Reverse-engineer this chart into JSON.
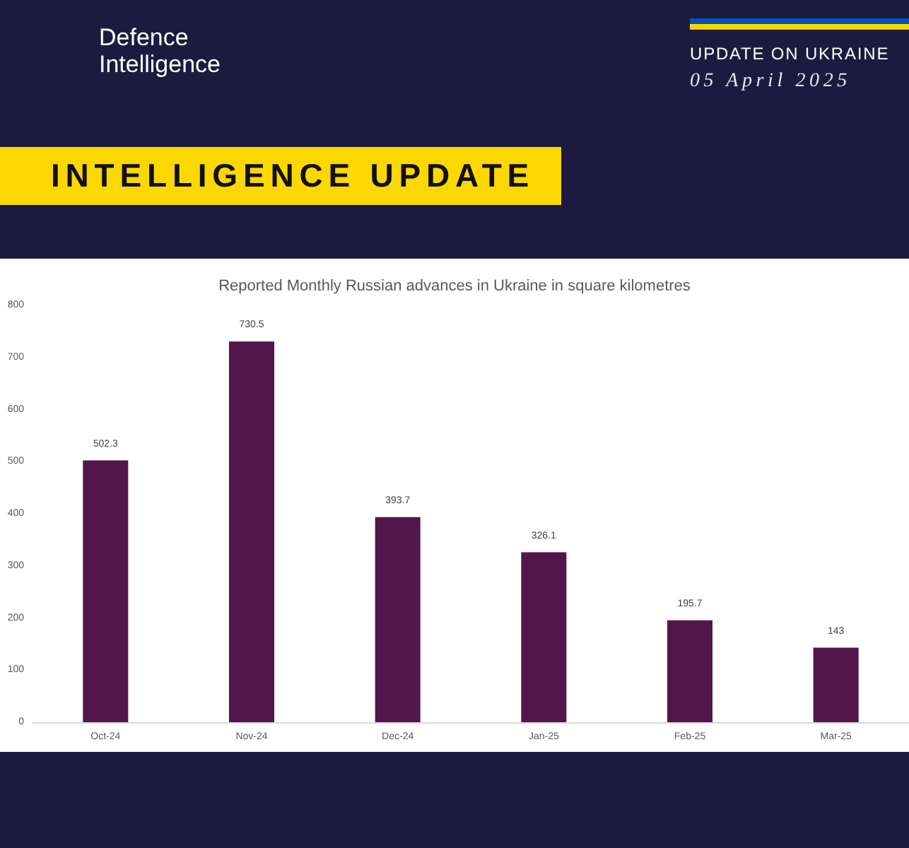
{
  "chart_data": {
    "type": "bar",
    "title": "Reported Monthly Russian advances in Ukraine in square kilometres",
    "categories": [
      "Oct-24",
      "Nov-24",
      "Dec-24",
      "Jan-25",
      "Feb-25",
      "Mar-25"
    ],
    "values": [
      502.3,
      730.5,
      393.7,
      326.1,
      195.7,
      143
    ],
    "color": "#52164a",
    "ylim": [
      0,
      800
    ],
    "yticks": [
      0,
      100,
      200,
      300,
      400,
      500,
      600,
      700,
      800
    ],
    "data_labels": true,
    "annotations": [
      "Defence Intelligence",
      "UPDATE ON UKRAINE",
      "05 April 2025",
      "INTELLIGENCE UPDATE"
    ]
  }
}
